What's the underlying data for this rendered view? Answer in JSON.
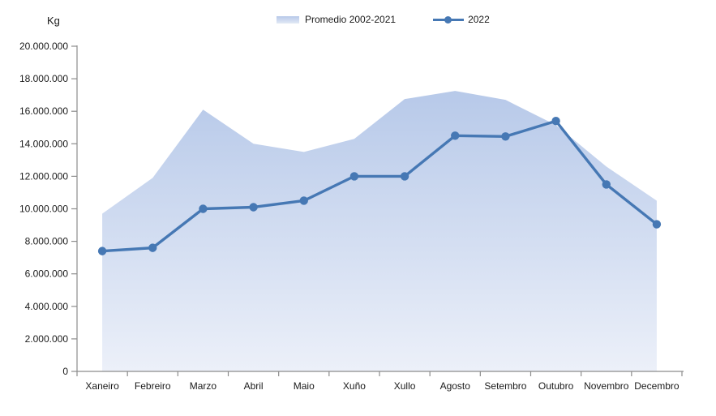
{
  "chart_data": {
    "type": "area+line",
    "title": "",
    "ylabel": "Kg",
    "xlabel": "",
    "legend_position": "top",
    "grid": false,
    "categories": [
      "Xaneiro",
      "Febreiro",
      "Marzo",
      "Abril",
      "Maio",
      "Xuño",
      "Xullo",
      "Agosto",
      "Setembro",
      "Outubro",
      "Novembro",
      "Decembro"
    ],
    "series": [
      {
        "name": "Promedio 2002-2021",
        "type": "area",
        "values": [
          9700000,
          11900000,
          16100000,
          14000000,
          13500000,
          14300000,
          16750000,
          17250000,
          16700000,
          15150000,
          12600000,
          10500000
        ]
      },
      {
        "name": "2022",
        "type": "line",
        "values": [
          7400000,
          7600000,
          10000000,
          10100000,
          10500000,
          12000000,
          12000000,
          14500000,
          14450000,
          15400000,
          11500000,
          9050000
        ]
      }
    ],
    "y_axis": {
      "min": 0,
      "max": 20000000,
      "step": 2000000,
      "tick_labels": [
        "0",
        "2.000.000",
        "4.000.000",
        "6.000.000",
        "8.000.000",
        "10.000.000",
        "12.000.000",
        "14.000.000",
        "16.000.000",
        "18.000.000",
        "20.000.000"
      ]
    },
    "colors": {
      "line": "#4678b4",
      "area_top": "#b7c9e9",
      "area_bottom": "#ecf0f9",
      "axis": "#8c8c8c",
      "text": "#1a1a1a"
    }
  }
}
